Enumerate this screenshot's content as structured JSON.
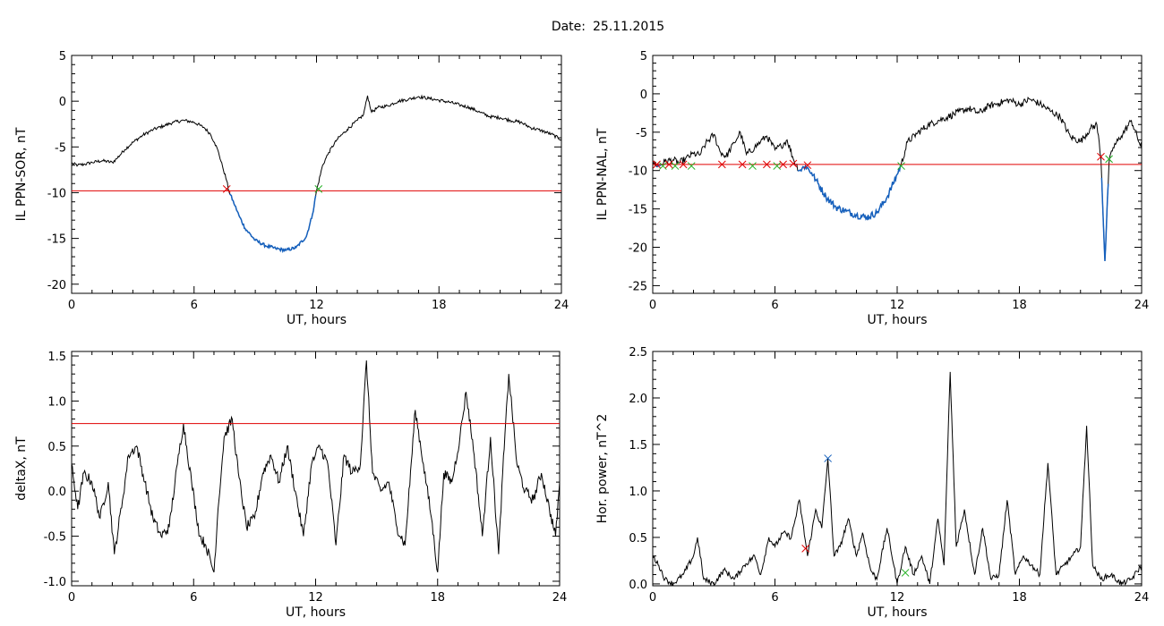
{
  "header": {
    "date_label": "Date:",
    "date_value": "25.11.2015"
  },
  "chart_data": [
    {
      "type": "line",
      "xlabel": "UT, hours",
      "ylabel": "IL PPN-SOR, nT",
      "xlim": [
        0,
        24
      ],
      "ylim": [
        -21,
        5
      ],
      "xticks": [
        0,
        6,
        12,
        18,
        24
      ],
      "yticks": [
        -20,
        -15,
        -10,
        -5,
        0,
        5
      ],
      "threshold": -9.8,
      "colors": {
        "line": "#000000",
        "segment": "#1560bd",
        "threshold": "#e00000",
        "start": "#e00000",
        "end": "#20b020"
      },
      "series": [
        {
          "x": [
            0,
            0.3,
            0.6,
            1,
            1.5,
            2,
            2.2,
            2.6,
            3,
            3.5,
            4,
            4.5,
            5,
            5.5,
            6,
            6.5,
            6.8,
            7,
            7.2,
            7.4,
            7.6,
            7.7,
            8,
            8.2,
            8.5,
            9,
            9.5,
            10,
            10.5,
            11,
            11.5,
            11.8,
            12,
            12.3,
            12.6,
            13,
            13.5,
            14,
            14.3,
            14.5,
            14.7,
            15,
            15.5,
            16,
            16.5,
            17,
            17.5,
            18,
            18.5,
            19,
            19.5,
            20,
            20.5,
            21,
            21.5,
            22,
            22.5,
            23,
            23.5,
            24
          ],
          "y": [
            -6.8,
            -7,
            -6.9,
            -6.7,
            -6.5,
            -6.7,
            -6.3,
            -5.3,
            -4.5,
            -3.7,
            -3.1,
            -2.7,
            -2.3,
            -2.1,
            -2.3,
            -2.9,
            -3.6,
            -4.5,
            -5.6,
            -7.2,
            -8.7,
            -9.8,
            -11.4,
            -12.5,
            -13.9,
            -15.2,
            -15.8,
            -16.1,
            -16.3,
            -16,
            -14.8,
            -12.4,
            -9.8,
            -7,
            -5.6,
            -4.2,
            -3.1,
            -2.1,
            -1.5,
            0.6,
            -1.2,
            -0.7,
            -0.5,
            0,
            0.2,
            0.5,
            0.3,
            0.1,
            -0.1,
            -0.4,
            -0.7,
            -1.2,
            -1.7,
            -1.8,
            -2.1,
            -2.3,
            -2.9,
            -3.2,
            -3.6,
            -4.2
          ]
        }
      ],
      "markers": [
        {
          "x": 7.6,
          "y": -9.6,
          "color": "#e00000"
        },
        {
          "x": 12.1,
          "y": -9.6,
          "color": "#20b020"
        }
      ]
    },
    {
      "type": "line",
      "xlabel": "UT, hours",
      "ylabel": "IL PPN-NAL, nT",
      "xlim": [
        0,
        24
      ],
      "ylim": [
        -26,
        5
      ],
      "xticks": [
        0,
        6,
        12,
        18,
        24
      ],
      "yticks": [
        -25,
        -20,
        -15,
        -10,
        -5,
        0,
        5
      ],
      "threshold": -9.2,
      "colors": {
        "line": "#000000",
        "segment": "#1560bd",
        "threshold": "#e00000",
        "start": "#e00000",
        "end": "#20b020"
      },
      "series": [
        {
          "x": [
            0,
            0.3,
            0.6,
            1,
            1.3,
            1.6,
            2,
            2.3,
            2.6,
            3,
            3.3,
            3.6,
            4,
            4.3,
            4.6,
            5,
            5.3,
            5.6,
            6,
            6.3,
            6.6,
            6.9,
            7.2,
            7.5,
            7.8,
            8,
            8.5,
            9,
            9.5,
            10,
            10.5,
            11,
            11.5,
            12,
            12.2,
            12.5,
            13,
            13.5,
            14,
            14.5,
            15,
            15.5,
            16,
            16.5,
            17,
            17.5,
            18,
            18.5,
            19,
            19.5,
            20,
            20.5,
            21,
            21.5,
            21.8,
            22,
            22.2,
            22.4,
            22.6,
            23,
            23.5,
            24
          ],
          "y": [
            -9,
            -9.4,
            -8.8,
            -8.6,
            -9,
            -8.5,
            -7.8,
            -8,
            -6.5,
            -5.3,
            -7.5,
            -8.2,
            -6.4,
            -5,
            -7.9,
            -7,
            -6.2,
            -5.5,
            -7.3,
            -6.8,
            -6,
            -8.5,
            -10,
            -9.4,
            -10.3,
            -11.2,
            -13.4,
            -14.8,
            -15.3,
            -15.8,
            -16.1,
            -15.5,
            -13.5,
            -10.5,
            -9.2,
            -6.3,
            -5.1,
            -4.1,
            -3.5,
            -3,
            -2.4,
            -1.9,
            -2.5,
            -1.6,
            -1.2,
            -0.8,
            -1.4,
            -0.7,
            -1.3,
            -2.2,
            -3,
            -5.6,
            -6.2,
            -4.5,
            -4,
            -8.2,
            -21.8,
            -9,
            -7,
            -5.5,
            -3.5,
            -7.2
          ]
        }
      ],
      "markers": [
        {
          "x": 0.2,
          "y": -9.2,
          "color": "#e00000"
        },
        {
          "x": 0.5,
          "y": -9.4,
          "color": "#20b020"
        },
        {
          "x": 0.8,
          "y": -9.2,
          "color": "#e00000"
        },
        {
          "x": 1.1,
          "y": -9.4,
          "color": "#20b020"
        },
        {
          "x": 1.5,
          "y": -9.2,
          "color": "#e00000"
        },
        {
          "x": 1.9,
          "y": -9.4,
          "color": "#20b020"
        },
        {
          "x": 3.4,
          "y": -9.2,
          "color": "#e00000"
        },
        {
          "x": 4.4,
          "y": -9.2,
          "color": "#e00000"
        },
        {
          "x": 4.9,
          "y": -9.4,
          "color": "#20b020"
        },
        {
          "x": 5.6,
          "y": -9.2,
          "color": "#e00000"
        },
        {
          "x": 6.1,
          "y": -9.4,
          "color": "#20b020"
        },
        {
          "x": 6.4,
          "y": -9.2,
          "color": "#e00000"
        },
        {
          "x": 6.9,
          "y": -9.1,
          "color": "#e00000"
        },
        {
          "x": 7.6,
          "y": -9.3,
          "color": "#e00000"
        },
        {
          "x": 12.2,
          "y": -9.4,
          "color": "#20b020"
        },
        {
          "x": 22.0,
          "y": -8.2,
          "color": "#e00000"
        },
        {
          "x": 22.4,
          "y": -8.5,
          "color": "#20b020"
        }
      ]
    },
    {
      "type": "line",
      "xlabel": "UT, hours",
      "ylabel": "deltaX, nT",
      "xlim": [
        0,
        24
      ],
      "ylim": [
        -1.05,
        1.55
      ],
      "xticks": [
        0,
        6,
        12,
        18,
        24
      ],
      "yticks": [
        -1.0,
        -0.5,
        0.0,
        0.5,
        1.0,
        1.5
      ],
      "ytick_labels": [
        "-1.0",
        "-0.5",
        "0.0",
        "0.5",
        "1.0",
        "1.5"
      ],
      "threshold": 0.75,
      "colors": {
        "line": "#000000",
        "threshold": "#e00000"
      },
      "series": [
        {
          "x": [
            0,
            0.3,
            0.6,
            1,
            1.4,
            1.8,
            2.1,
            2.5,
            2.8,
            3.2,
            3.6,
            4,
            4.4,
            4.8,
            5.2,
            5.5,
            5.9,
            6.3,
            6.6,
            7,
            7.2,
            7.5,
            7.9,
            8.2,
            8.6,
            9,
            9.4,
            9.8,
            10.2,
            10.6,
            11,
            11.4,
            11.8,
            12.2,
            12.6,
            13,
            13.4,
            13.8,
            14.2,
            14.5,
            14.8,
            15.2,
            15.6,
            16,
            16.4,
            16.9,
            17.3,
            17.7,
            18,
            18.3,
            18.7,
            19.1,
            19.4,
            19.8,
            20.2,
            20.6,
            21,
            21.2,
            21.5,
            21.9,
            22.3,
            22.7,
            23.1,
            23.5,
            23.8,
            24
          ],
          "y": [
            0.3,
            -0.2,
            0.2,
            0.1,
            -0.3,
            0.1,
            -0.7,
            -0.1,
            0.4,
            0.5,
            0.1,
            -0.3,
            -0.5,
            -0.4,
            0.3,
            0.75,
            0.1,
            -0.5,
            -0.6,
            -0.9,
            -0.2,
            0.6,
            0.8,
            0.2,
            -0.4,
            -0.3,
            0.2,
            0.4,
            0.1,
            0.5,
            0.0,
            -0.5,
            0.3,
            0.5,
            0.3,
            -0.6,
            0.4,
            0.2,
            0.3,
            1.45,
            0.2,
            0.0,
            0.1,
            -0.4,
            -0.6,
            0.9,
            0.3,
            -0.3,
            -0.9,
            0.2,
            0.1,
            0.6,
            1.1,
            0.4,
            -0.5,
            0.6,
            -0.7,
            0.2,
            1.3,
            0.3,
            0.0,
            -0.1,
            0.2,
            -0.2,
            -0.5,
            0.1
          ]
        }
      ]
    },
    {
      "type": "line",
      "xlabel": "UT, hours",
      "ylabel": "Hor. power, nT^2",
      "xlim": [
        0,
        24
      ],
      "ylim": [
        -0.02,
        2.5
      ],
      "xticks": [
        0,
        6,
        12,
        18,
        24
      ],
      "yticks": [
        0.0,
        0.5,
        1.0,
        1.5,
        2.0,
        2.5
      ],
      "ytick_labels": [
        "0.0",
        "0.5",
        "1.0",
        "1.5",
        "2.0",
        "2.5"
      ],
      "colors": {
        "line": "#000000"
      },
      "series": [
        {
          "x": [
            0,
            0.3,
            0.6,
            1,
            1.5,
            2,
            2.2,
            2.5,
            3,
            3.5,
            4,
            4.5,
            5,
            5.3,
            5.7,
            6,
            6.4,
            6.8,
            7.2,
            7.6,
            8,
            8.3,
            8.6,
            8.9,
            9.2,
            9.6,
            10,
            10.3,
            10.7,
            11,
            11.5,
            12,
            12.4,
            12.8,
            13.2,
            13.6,
            14,
            14.3,
            14.6,
            14.9,
            15.3,
            15.8,
            16.2,
            16.6,
            17,
            17.4,
            17.8,
            18.2,
            18.6,
            19,
            19.4,
            19.8,
            20.2,
            20.6,
            21,
            21.3,
            21.6,
            22,
            22.5,
            23,
            23.5,
            24
          ],
          "y": [
            0.3,
            0.2,
            0.05,
            0.0,
            0.1,
            0.3,
            0.5,
            0.05,
            0.0,
            0.15,
            0.05,
            0.2,
            0.3,
            0.1,
            0.5,
            0.4,
            0.55,
            0.5,
            0.9,
            0.3,
            0.8,
            0.6,
            1.35,
            0.3,
            0.4,
            0.7,
            0.3,
            0.55,
            0.15,
            0.05,
            0.6,
            0.0,
            0.4,
            0.1,
            0.3,
            0.0,
            0.7,
            0.2,
            2.28,
            0.4,
            0.8,
            0.1,
            0.6,
            0.05,
            0.1,
            0.9,
            0.1,
            0.3,
            0.2,
            0.1,
            1.3,
            0.1,
            0.2,
            0.3,
            0.4,
            1.7,
            0.2,
            0.05,
            0.1,
            0.0,
            0.05,
            0.2
          ]
        }
      ],
      "markers": [
        {
          "x": 8.6,
          "y": 1.35,
          "color": "#1560bd"
        },
        {
          "x": 7.5,
          "y": 0.38,
          "color": "#e00000"
        },
        {
          "x": 12.4,
          "y": 0.12,
          "color": "#20b020"
        }
      ]
    }
  ]
}
